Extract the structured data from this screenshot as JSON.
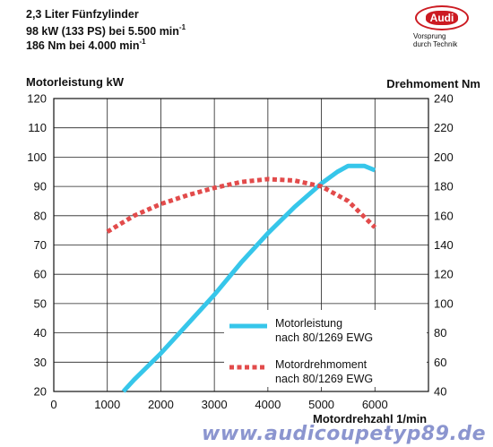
{
  "header": {
    "line1": "2,3 Liter Fünfzylinder",
    "line2": "98 kW (133 PS) bei 5.500 min",
    "line2_sup": "-1",
    "line3": "186 Nm bei 4.000 min",
    "line3_sup": "-1"
  },
  "logo": {
    "brand": "Audi",
    "slogan_line1": "Vorsprung",
    "slogan_line2": "durch Technik",
    "color": "#cc1b22"
  },
  "watermark": "www.audicoupetyp89.de",
  "chart_data": {
    "type": "line",
    "xlabel": "Motordrehzahl 1/min",
    "ylabel_left": "Motorleistung kW",
    "ylabel_right": "Drehmoment Nm",
    "xlim": [
      0,
      7000
    ],
    "ylim_left": [
      20,
      120
    ],
    "ylim_right": [
      40,
      240
    ],
    "x_ticks": [
      0,
      1000,
      2000,
      3000,
      4000,
      5000,
      6000
    ],
    "y_left_ticks": [
      20,
      30,
      40,
      50,
      60,
      70,
      80,
      90,
      100,
      110,
      120
    ],
    "y_right_ticks": [
      40,
      60,
      80,
      100,
      120,
      140,
      160,
      180,
      200,
      220,
      240
    ],
    "grid": true,
    "legend_position": "bottom-right",
    "series": [
      {
        "name": "Motorleistung nach 80/1269 EWG",
        "axis": "left",
        "color": "#36c6ea",
        "style": "solid",
        "points": [
          [
            1300,
            20
          ],
          [
            1500,
            24
          ],
          [
            2000,
            33
          ],
          [
            2500,
            43
          ],
          [
            3000,
            53
          ],
          [
            3500,
            64
          ],
          [
            4000,
            74
          ],
          [
            4500,
            83
          ],
          [
            5000,
            91
          ],
          [
            5300,
            95
          ],
          [
            5500,
            97
          ],
          [
            5800,
            97
          ],
          [
            6000,
            95.5
          ]
        ]
      },
      {
        "name": "Motordrehmoment nach 80/1269 EWG",
        "axis": "right",
        "color": "#e24b4b",
        "style": "dotted",
        "points": [
          [
            1000,
            149
          ],
          [
            1500,
            160
          ],
          [
            2000,
            168
          ],
          [
            2500,
            174
          ],
          [
            3000,
            179
          ],
          [
            3500,
            183
          ],
          [
            4000,
            185
          ],
          [
            4500,
            184
          ],
          [
            5000,
            180
          ],
          [
            5500,
            170
          ],
          [
            6000,
            152
          ]
        ]
      }
    ]
  }
}
